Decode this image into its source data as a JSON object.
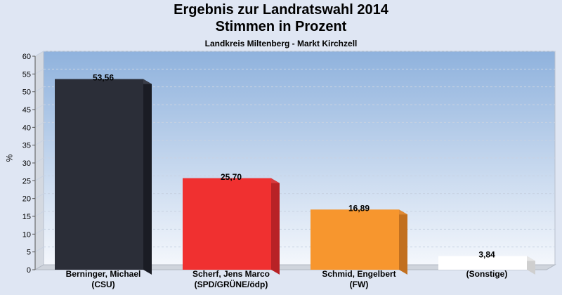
{
  "header": {
    "title_line1": "Ergebnis zur Landratswahl 2014",
    "title_line2": "Stimmen in Prozent",
    "subtitle": "Landkreis Miltenberg - Markt Kirchzell"
  },
  "colors": {
    "background": "#dfe6f3",
    "plot_top": "#8fb2dd",
    "plot_bottom": "#f4f7fc",
    "grid": "#c8d2e2"
  },
  "chart_data": {
    "type": "bar",
    "title": "Ergebnis zur Landratswahl 2014",
    "subtitle": "Stimmen in Prozent",
    "ylabel": "%",
    "ylim": [
      0,
      60
    ],
    "yticks": [
      0,
      5,
      10,
      15,
      20,
      25,
      30,
      35,
      40,
      45,
      50,
      55,
      60
    ],
    "grid": true,
    "categories": [
      {
        "line1": "Berninger, Michael",
        "line2": "(CSU)"
      },
      {
        "line1": "Scherf, Jens Marco",
        "line2": "(SPD/GRÜNE/ödp)"
      },
      {
        "line1": "Schmid, Engelbert",
        "line2": "(FW)"
      },
      {
        "line1": "(Sonstige)",
        "line2": ""
      }
    ],
    "values": [
      53.56,
      25.7,
      16.89,
      3.84
    ],
    "value_labels": [
      "53,56",
      "25,70",
      "16,89",
      "3,84"
    ],
    "bar_colors": [
      "#2b2e38",
      "#f03030",
      "#f7962e",
      "#ffffff"
    ],
    "bar_side_colors": [
      "#1a1c24",
      "#b82226",
      "#c2701f",
      "#cfcfcf"
    ],
    "bar_top_colors": [
      "#3a3d48",
      "#d83a3e",
      "#e08a34",
      "#e6e6e6"
    ]
  }
}
